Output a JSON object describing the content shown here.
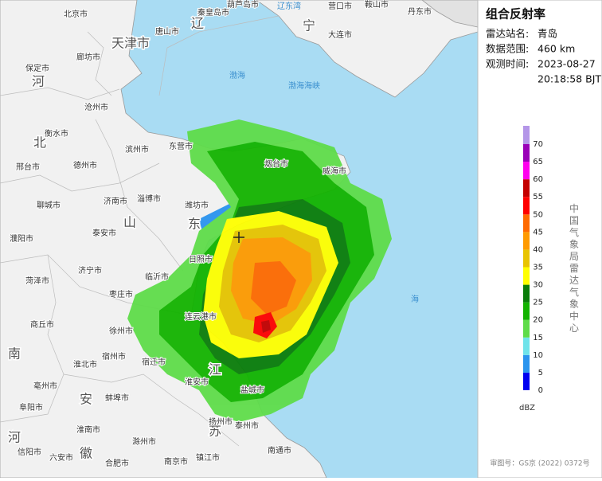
{
  "panel": {
    "title": "组合反射率",
    "fields": [
      {
        "label": "雷达站名:",
        "lines": [
          "青岛"
        ]
      },
      {
        "label": "数据范围:",
        "lines": [
          "460 km"
        ]
      },
      {
        "label": "观测时间:",
        "lines": [
          "2023-08-27",
          "20:18:58 BJT"
        ]
      }
    ],
    "colorbar": {
      "unit": "dBZ",
      "levels": [
        {
          "value": 0,
          "color": "#0000f0"
        },
        {
          "value": 5,
          "color": "#2a94ee"
        },
        {
          "value": 10,
          "color": "#6fe3ea"
        },
        {
          "value": 15,
          "color": "#5fdc4a"
        },
        {
          "value": 20,
          "color": "#13b300"
        },
        {
          "value": 25,
          "color": "#0a7d0a"
        },
        {
          "value": 30,
          "color": "#ffff00"
        },
        {
          "value": 35,
          "color": "#e8c400"
        },
        {
          "value": 40,
          "color": "#ff9a00"
        },
        {
          "value": 45,
          "color": "#ff6a00"
        },
        {
          "value": 50,
          "color": "#ff0000"
        },
        {
          "value": 55,
          "color": "#c40000"
        },
        {
          "value": 60,
          "color": "#ff00ee"
        },
        {
          "value": 65,
          "color": "#9a00b8"
        },
        {
          "value": 70,
          "color": "#b496e8"
        }
      ]
    },
    "organization": "中国气象局雷达气象中心",
    "footer": "审图号：GS京 (2022) 0372号"
  },
  "map": {
    "labels": [
      "北京市",
      "天津市",
      "廊坊市",
      "唐山市",
      "秦皇岛市",
      "葫芦岛市",
      "辽东湾",
      "营口市",
      "鞍山市",
      "丹东市",
      "辽",
      "宁",
      "大连市",
      "渤海",
      "渤海海峡",
      "保定市",
      "河",
      "北",
      "沧州市",
      "衡水市",
      "邢台市",
      "德州市",
      "滨州市",
      "东营市",
      "烟台市",
      "威海市",
      "淄博市",
      "潍坊市",
      "济南市",
      "山",
      "东",
      "聊城市",
      "泰安市",
      "濮阳市",
      "日照市",
      "济宁市",
      "临沂市",
      "菏泽市",
      "枣庄市",
      "连云港市",
      "商丘市",
      "徐州市",
      "宿迁市",
      "淮北市",
      "宿州市",
      "亳州市",
      "江",
      "淮安市",
      "盐城市",
      "苏",
      "安",
      "蚌埠市",
      "阜阳市",
      "淮南市",
      "滁州市",
      "扬州市",
      "泰州市",
      "南通市",
      "南京市",
      "合肥市",
      "六安市",
      "信阳市",
      "徽",
      "镇江市",
      "河",
      "南",
      "海"
    ]
  }
}
